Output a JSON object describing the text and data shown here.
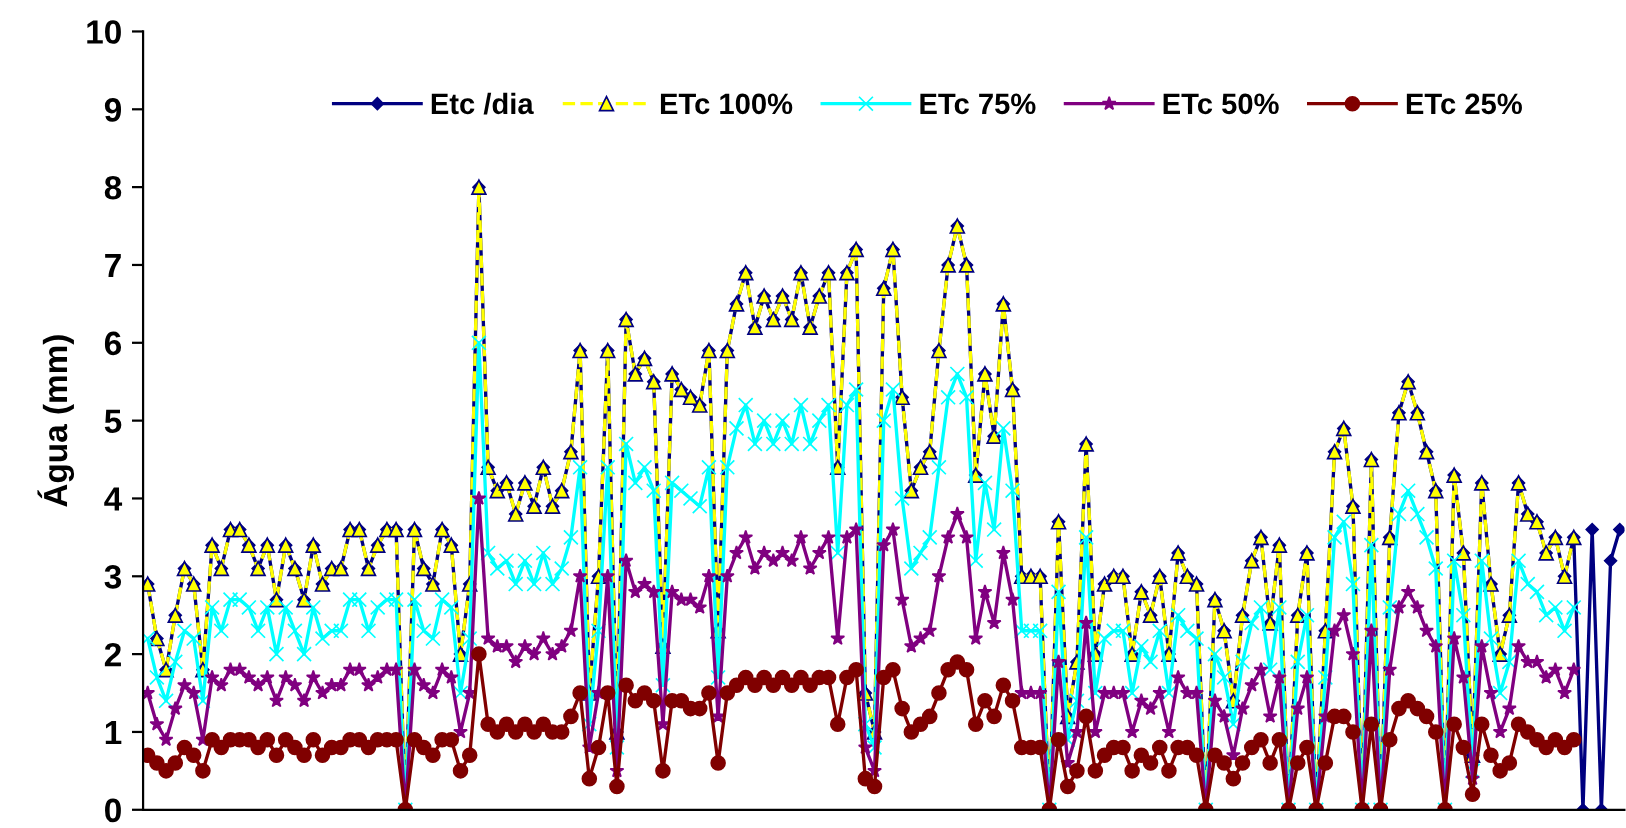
{
  "chart_data": {
    "type": "line",
    "ylabel": "Água (mm)",
    "ylim": [
      0,
      10
    ],
    "yticks": [
      0,
      1,
      2,
      3,
      4,
      5,
      6,
      7,
      8,
      9,
      10
    ],
    "grid": false,
    "legend": "top",
    "tick_labels": "y",
    "categories": [
      null,
      null,
      null,
      null,
      null,
      null,
      null,
      null,
      null,
      null,
      null,
      null,
      null,
      null,
      null,
      null,
      null,
      null,
      null,
      null,
      null,
      null,
      null,
      null,
      null,
      null,
      null,
      null,
      null,
      null,
      null,
      null,
      null,
      null,
      null,
      null,
      null,
      null,
      null,
      null,
      null,
      null,
      null,
      null,
      null,
      null,
      null,
      null,
      null,
      null,
      null,
      null,
      null,
      null,
      null,
      null,
      null,
      null,
      null,
      null,
      null,
      null,
      null,
      null,
      null,
      null,
      null,
      null,
      null,
      null,
      null,
      null,
      null,
      null,
      null,
      null,
      null,
      null,
      null,
      null,
      null,
      null,
      null,
      null,
      null,
      null,
      null,
      null,
      null,
      null,
      null,
      null,
      null,
      null,
      null,
      null,
      null,
      null,
      null,
      null,
      null,
      null,
      null,
      null,
      null,
      null,
      null,
      null,
      null,
      null,
      null,
      null,
      null,
      null,
      null,
      null,
      null,
      null,
      null,
      null,
      null,
      null,
      null,
      null,
      null,
      null,
      null,
      null,
      null,
      null,
      null,
      null,
      null,
      null,
      null,
      null,
      null,
      null,
      null,
      null,
      null,
      null,
      null,
      null,
      null,
      null,
      null,
      null,
      null,
      null,
      null,
      null,
      null,
      null,
      null,
      null,
      null,
      null,
      null,
      null,
      null
    ],
    "series": [
      {
        "name": "Etc /dia",
        "color": "#000080",
        "marker": "diamond",
        "line_style": "solid",
        "values": [
          2.9,
          2.2,
          1.8,
          2.5,
          3.1,
          2.9,
          1.8,
          3.4,
          3.1,
          3.6,
          3.6,
          3.4,
          3.1,
          3.4,
          2.7,
          3.4,
          3.1,
          2.7,
          3.4,
          2.9,
          3.1,
          3.1,
          3.6,
          3.6,
          3.1,
          3.4,
          3.6,
          3.6,
          0,
          3.6,
          3.1,
          2.9,
          3.6,
          3.4,
          2.0,
          2.9,
          8.0,
          4.4,
          4.1,
          4.2,
          3.8,
          4.2,
          3.9,
          4.4,
          3.9,
          4.1,
          4.6,
          5.9,
          1.5,
          3.0,
          5.9,
          1.0,
          6.3,
          5.6,
          5.8,
          5.5,
          2.1,
          5.6,
          5.4,
          5.3,
          5.2,
          5.9,
          2.3,
          5.9,
          6.5,
          6.9,
          6.2,
          6.6,
          6.3,
          6.6,
          6.3,
          6.9,
          6.2,
          6.6,
          6.9,
          4.4,
          6.9,
          7.2,
          1.5,
          1.0,
          6.7,
          7.2,
          5.3,
          4.1,
          4.4,
          4.6,
          5.9,
          7.0,
          7.5,
          7.0,
          4.3,
          5.6,
          4.8,
          6.5,
          5.4,
          3.0,
          3.0,
          3.0,
          0,
          3.7,
          1.2,
          1.9,
          4.7,
          2.0,
          2.9,
          3.0,
          3.0,
          2.0,
          2.8,
          2.5,
          3.0,
          2.0,
          3.3,
          3.0,
          2.9,
          0,
          2.7,
          2.3,
          1.4,
          2.5,
          3.2,
          3.5,
          2.4,
          3.4,
          0,
          2.5,
          3.3,
          0,
          2.3,
          4.6,
          4.9,
          3.9,
          0,
          4.5,
          0,
          3.5,
          5.1,
          5.5,
          5.1,
          4.6,
          4.1,
          0,
          4.3,
          3.3,
          0.7,
          4.2,
          2.9,
          2.0,
          2.5,
          4.2,
          3.8,
          3.7,
          3.3,
          3.5,
          3.0,
          3.5,
          0,
          3.6,
          0,
          3.2,
          3.6
        ]
      },
      {
        "name": "ETc 100%",
        "color": "#ffff00",
        "marker": "triangle",
        "line_style": "dashed",
        "values": [
          2.9,
          2.2,
          1.8,
          2.5,
          3.1,
          2.9,
          1.8,
          3.4,
          3.1,
          3.6,
          3.6,
          3.4,
          3.1,
          3.4,
          2.7,
          3.4,
          3.1,
          2.7,
          3.4,
          2.9,
          3.1,
          3.1,
          3.6,
          3.6,
          3.1,
          3.4,
          3.6,
          3.6,
          0,
          3.6,
          3.1,
          2.9,
          3.6,
          3.4,
          2.0,
          2.9,
          8.0,
          4.4,
          4.1,
          4.2,
          3.8,
          4.2,
          3.9,
          4.4,
          3.9,
          4.1,
          4.6,
          5.9,
          1.5,
          3.0,
          5.9,
          1.0,
          6.3,
          5.6,
          5.8,
          5.5,
          2.1,
          5.6,
          5.4,
          5.3,
          5.2,
          5.9,
          2.3,
          5.9,
          6.5,
          6.9,
          6.2,
          6.6,
          6.3,
          6.6,
          6.3,
          6.9,
          6.2,
          6.6,
          6.9,
          4.4,
          6.9,
          7.2,
          1.5,
          1.0,
          6.7,
          7.2,
          5.3,
          4.1,
          4.4,
          4.6,
          5.9,
          7.0,
          7.5,
          7.0,
          4.3,
          5.6,
          4.8,
          6.5,
          5.4,
          3.0,
          3.0,
          3.0,
          0,
          3.7,
          1.2,
          1.9,
          4.7,
          2.0,
          2.9,
          3.0,
          3.0,
          2.0,
          2.8,
          2.5,
          3.0,
          2.0,
          3.3,
          3.0,
          2.9,
          0,
          2.7,
          2.3,
          1.4,
          2.5,
          3.2,
          3.5,
          2.4,
          3.4,
          0,
          2.5,
          3.3,
          0,
          2.3,
          4.6,
          4.9,
          3.9,
          0,
          4.5,
          0,
          3.5,
          5.1,
          5.5,
          5.1,
          4.6,
          4.1,
          0,
          4.3,
          3.3,
          0.7,
          4.2,
          2.9,
          2.0,
          2.5,
          4.2,
          3.8,
          3.7,
          3.3,
          3.5,
          3.0,
          3.5,
          null,
          null,
          null,
          null,
          null
        ]
      },
      {
        "name": "ETc 75%",
        "color": "#00ffff",
        "marker": "cross",
        "line_style": "solid",
        "values": [
          2.2,
          1.7,
          1.4,
          1.9,
          2.3,
          2.2,
          1.4,
          2.6,
          2.3,
          2.7,
          2.7,
          2.6,
          2.3,
          2.6,
          2.0,
          2.6,
          2.3,
          2.0,
          2.6,
          2.2,
          2.3,
          2.3,
          2.7,
          2.7,
          2.3,
          2.6,
          2.7,
          2.7,
          0,
          2.7,
          2.3,
          2.2,
          2.7,
          2.6,
          1.5,
          2.2,
          6.0,
          3.3,
          3.1,
          3.2,
          2.9,
          3.2,
          2.9,
          3.3,
          2.9,
          3.1,
          3.5,
          4.4,
          1.1,
          2.3,
          4.4,
          0.8,
          4.7,
          4.2,
          4.4,
          4.1,
          1.6,
          4.2,
          4.1,
          4.0,
          3.9,
          4.4,
          1.7,
          4.4,
          4.9,
          5.2,
          4.7,
          5.0,
          4.7,
          5.0,
          4.7,
          5.2,
          4.7,
          5.0,
          5.2,
          3.3,
          5.2,
          5.4,
          1.1,
          0.8,
          5.0,
          5.4,
          4.0,
          3.1,
          3.3,
          3.5,
          4.4,
          5.3,
          5.6,
          5.3,
          3.2,
          4.2,
          3.6,
          4.9,
          4.1,
          2.3,
          2.3,
          2.3,
          0,
          2.8,
          0.9,
          1.4,
          3.5,
          1.5,
          2.2,
          2.3,
          2.3,
          1.5,
          2.1,
          1.9,
          2.3,
          1.5,
          2.5,
          2.3,
          2.2,
          0,
          2.0,
          1.7,
          1.1,
          1.9,
          2.4,
          2.6,
          1.8,
          2.6,
          0,
          1.9,
          2.5,
          0,
          1.7,
          3.5,
          3.7,
          2.9,
          0,
          3.4,
          0,
          2.6,
          3.8,
          4.1,
          3.8,
          3.5,
          3.1,
          0,
          3.2,
          2.5,
          0.5,
          3.2,
          2.2,
          1.5,
          1.9,
          3.2,
          2.9,
          2.8,
          2.5,
          2.6,
          2.3,
          2.6,
          null,
          null,
          null,
          null,
          null
        ]
      },
      {
        "name": "ETc 50%",
        "color": "#800080",
        "marker": "star",
        "line_style": "solid",
        "values": [
          1.5,
          1.1,
          0.9,
          1.3,
          1.6,
          1.5,
          0.9,
          1.7,
          1.6,
          1.8,
          1.8,
          1.7,
          1.6,
          1.7,
          1.4,
          1.7,
          1.6,
          1.4,
          1.7,
          1.5,
          1.6,
          1.6,
          1.8,
          1.8,
          1.6,
          1.7,
          1.8,
          1.8,
          0,
          1.8,
          1.6,
          1.5,
          1.8,
          1.7,
          1.0,
          1.5,
          4.0,
          2.2,
          2.1,
          2.1,
          1.9,
          2.1,
          2.0,
          2.2,
          2.0,
          2.1,
          2.3,
          3.0,
          0.8,
          1.5,
          3.0,
          0.5,
          3.2,
          2.8,
          2.9,
          2.8,
          1.1,
          2.8,
          2.7,
          2.7,
          2.6,
          3.0,
          1.2,
          3.0,
          3.3,
          3.5,
          3.1,
          3.3,
          3.2,
          3.3,
          3.2,
          3.5,
          3.1,
          3.3,
          3.5,
          2.2,
          3.5,
          3.6,
          0.8,
          0.5,
          3.4,
          3.6,
          2.7,
          2.1,
          2.2,
          2.3,
          3.0,
          3.5,
          3.8,
          3.5,
          2.2,
          2.8,
          2.4,
          3.3,
          2.7,
          1.5,
          1.5,
          1.5,
          0,
          1.9,
          0.6,
          1.0,
          2.4,
          1.0,
          1.5,
          1.5,
          1.5,
          1.0,
          1.4,
          1.3,
          1.5,
          1.0,
          1.7,
          1.5,
          1.5,
          0,
          1.4,
          1.2,
          0.7,
          1.3,
          1.6,
          1.8,
          1.2,
          1.7,
          0,
          1.3,
          1.7,
          0,
          1.2,
          2.3,
          2.5,
          2.0,
          0,
          2.3,
          0,
          1.8,
          2.6,
          2.8,
          2.6,
          2.3,
          2.1,
          0,
          2.2,
          1.7,
          0.4,
          2.1,
          1.5,
          1.0,
          1.3,
          2.1,
          1.9,
          1.9,
          1.7,
          1.8,
          1.5,
          1.8,
          null,
          null,
          null,
          null,
          null
        ]
      },
      {
        "name": "ETc 25%",
        "color": "#800000",
        "marker": "circle",
        "line_style": "solid",
        "values": [
          0.7,
          0.6,
          0.5,
          0.6,
          0.8,
          0.7,
          0.5,
          0.9,
          0.8,
          0.9,
          0.9,
          0.9,
          0.8,
          0.9,
          0.7,
          0.9,
          0.8,
          0.7,
          0.9,
          0.7,
          0.8,
          0.8,
          0.9,
          0.9,
          0.8,
          0.9,
          0.9,
          0.9,
          0,
          0.9,
          0.8,
          0.7,
          0.9,
          0.9,
          0.5,
          0.7,
          2.0,
          1.1,
          1.0,
          1.1,
          1.0,
          1.1,
          1.0,
          1.1,
          1.0,
          1.0,
          1.2,
          1.5,
          0.4,
          0.8,
          1.5,
          0.3,
          1.6,
          1.4,
          1.5,
          1.4,
          0.5,
          1.4,
          1.4,
          1.3,
          1.3,
          1.5,
          0.6,
          1.5,
          1.6,
          1.7,
          1.6,
          1.7,
          1.6,
          1.7,
          1.6,
          1.7,
          1.6,
          1.7,
          1.7,
          1.1,
          1.7,
          1.8,
          0.4,
          0.3,
          1.7,
          1.8,
          1.3,
          1.0,
          1.1,
          1.2,
          1.5,
          1.8,
          1.9,
          1.8,
          1.1,
          1.4,
          1.2,
          1.6,
          1.4,
          0.8,
          0.8,
          0.8,
          0,
          0.9,
          0.3,
          0.5,
          1.2,
          0.5,
          0.7,
          0.8,
          0.8,
          0.5,
          0.7,
          0.6,
          0.8,
          0.5,
          0.8,
          0.8,
          0.7,
          0,
          0.7,
          0.6,
          0.4,
          0.6,
          0.8,
          0.9,
          0.6,
          0.9,
          0,
          0.6,
          0.8,
          0,
          0.6,
          1.2,
          1.2,
          1.0,
          0,
          1.1,
          0,
          0.9,
          1.3,
          1.4,
          1.3,
          1.2,
          1.0,
          0,
          1.1,
          0.8,
          0.2,
          1.1,
          0.7,
          0.5,
          0.6,
          1.1,
          1.0,
          0.9,
          0.8,
          0.9,
          0.8,
          0.9,
          null,
          null,
          null,
          null,
          null
        ]
      }
    ]
  }
}
